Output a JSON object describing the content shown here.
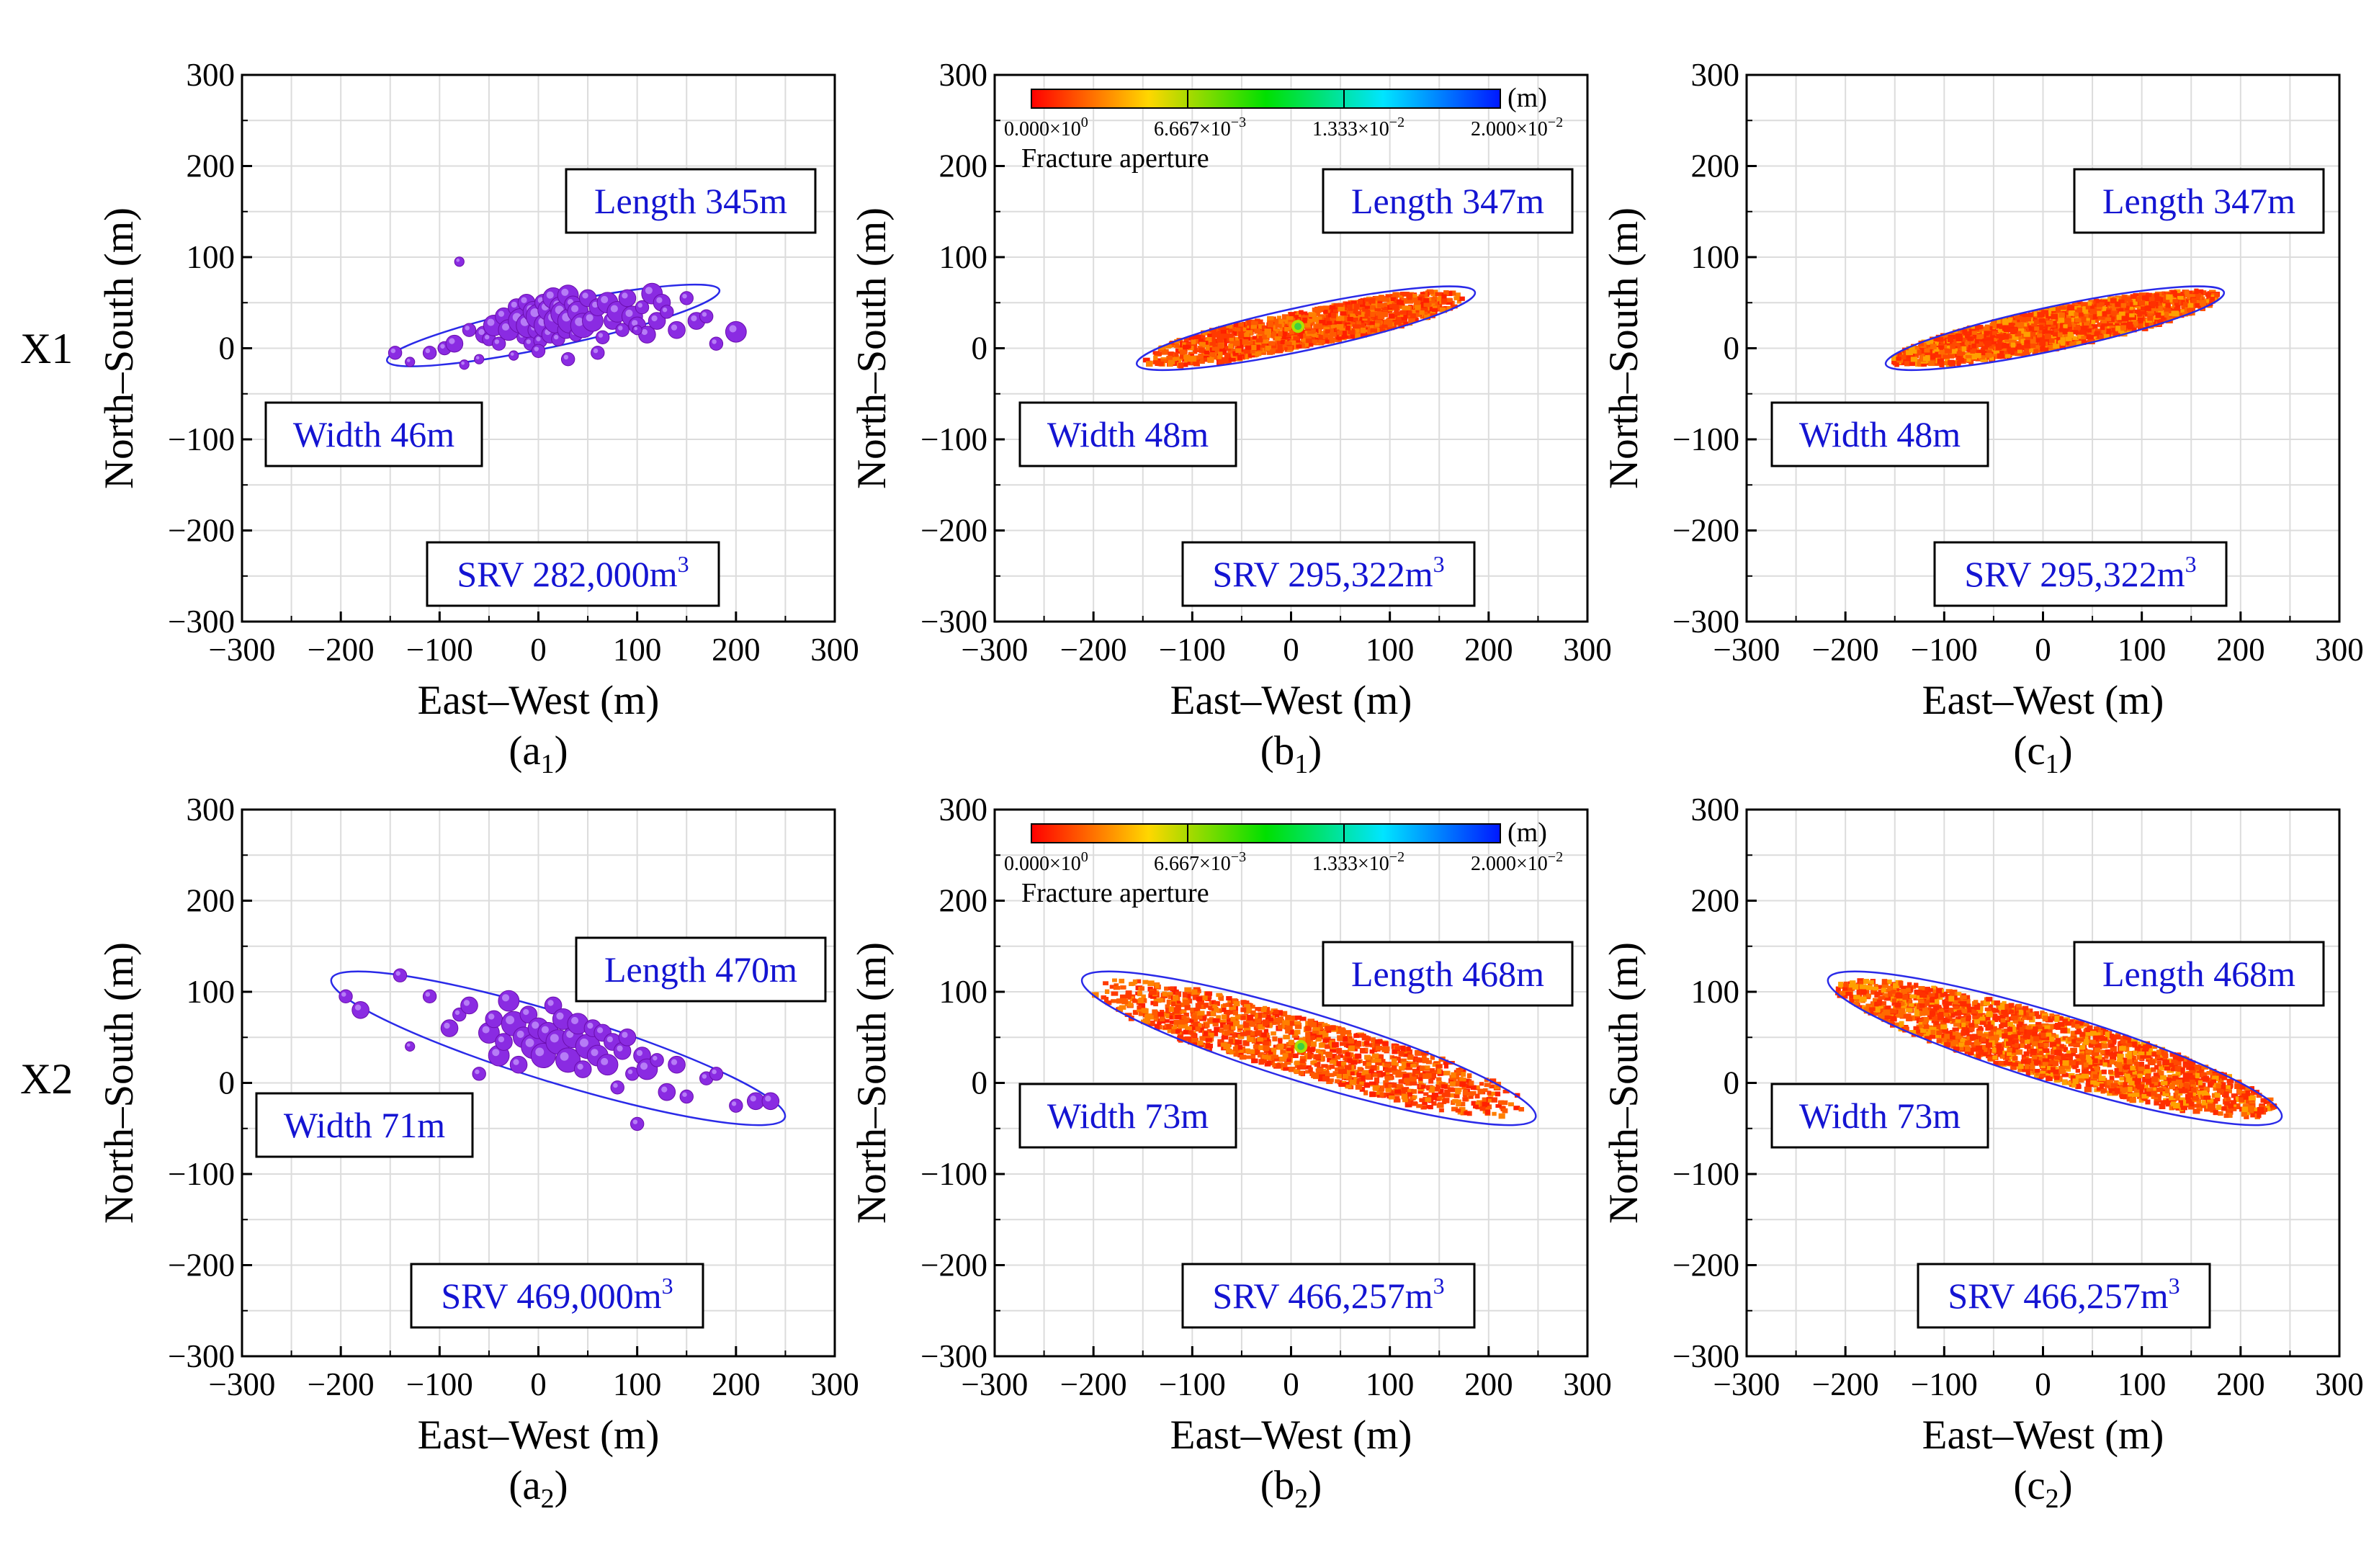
{
  "figure": {
    "rows": [
      {
        "label": "X1"
      },
      {
        "label": "X2"
      }
    ],
    "axis_labels": {
      "x": "East–West (m)",
      "y": "North–South (m)"
    },
    "ticks": [
      "−300",
      "−200",
      "−100",
      "0",
      "100",
      "200",
      "300"
    ],
    "colorbar": {
      "unit": "(m)",
      "title": "Fracture aperture",
      "ticks": [
        {
          "m": "0.000×10",
          "e": "0"
        },
        {
          "m": "6.667×10",
          "e": "−3"
        },
        {
          "m": "1.333×10",
          "e": "−2"
        },
        {
          "m": "2.000×10",
          "e": "−2"
        }
      ],
      "colors": [
        "#ff0000",
        "#ffd700",
        "#00e000",
        "#00e5ff",
        "#0018ff"
      ]
    },
    "colors": {
      "event": "#8a2be2",
      "ellipse": "#2a2ae8",
      "fracture": "#ff3a00",
      "annotation_text": "#1414d2"
    }
  },
  "chart_data": [
    {
      "id": "a1",
      "type": "scatter",
      "row": "X1",
      "panel_label": "a",
      "panel_sub": "1",
      "xlabel": "East–West (m)",
      "ylabel": "North–South (m)",
      "xlim": [
        -300,
        300
      ],
      "ylim": [
        -300,
        300
      ],
      "grid": true,
      "annotations": {
        "length": "Length 345m",
        "width": "Width 46m",
        "srv_num": "SRV 282,000m",
        "srv_sup": "3"
      },
      "ellipse": {
        "cx": 15,
        "cy": 25,
        "a": 172,
        "b": 23,
        "angle_deg": 12
      },
      "series": [
        {
          "kind": "microseismic-events",
          "x": [
            -145,
            -130,
            -110,
            -95,
            -85,
            -75,
            -70,
            -60,
            -55,
            -50,
            -45,
            -40,
            -35,
            -30,
            -25,
            -22,
            -18,
            -15,
            -12,
            -10,
            -8,
            -5,
            -2,
            0,
            2,
            5,
            8,
            10,
            12,
            15,
            18,
            20,
            22,
            25,
            28,
            30,
            32,
            35,
            38,
            40,
            45,
            50,
            55,
            60,
            65,
            70,
            75,
            80,
            85,
            90,
            95,
            100,
            105,
            110,
            115,
            120,
            125,
            130,
            140,
            150,
            160,
            170,
            180,
            200,
            -80,
            0,
            30,
            60,
            100
          ],
          "y": [
            -5,
            -15,
            -5,
            0,
            5,
            -18,
            20,
            -12,
            15,
            10,
            25,
            5,
            35,
            20,
            -8,
            45,
            30,
            12,
            50,
            25,
            5,
            40,
            20,
            35,
            8,
            50,
            25,
            42,
            15,
            55,
            30,
            10,
            45,
            38,
            20,
            58,
            30,
            48,
            15,
            40,
            25,
            55,
            30,
            45,
            12,
            50,
            30,
            40,
            20,
            55,
            35,
            25,
            45,
            15,
            60,
            30,
            50,
            40,
            20,
            55,
            30,
            35,
            5,
            18,
            95,
            -3,
            -12,
            -5,
            20
          ],
          "size": [
            2,
            1,
            2,
            2,
            3,
            1,
            2,
            1,
            3,
            2,
            4,
            2,
            3,
            4,
            1,
            3,
            5,
            2,
            3,
            5,
            2,
            4,
            3,
            5,
            2,
            3,
            5,
            4,
            3,
            4,
            5,
            2,
            4,
            5,
            3,
            4,
            5,
            3,
            2,
            4,
            5,
            3,
            4,
            3,
            2,
            4,
            3,
            4,
            2,
            3,
            4,
            3,
            2,
            3,
            4,
            3,
            3,
            2,
            3,
            2,
            3,
            2,
            2,
            4,
            1,
            2,
            2,
            2,
            1
          ]
        }
      ]
    },
    {
      "id": "b1",
      "type": "scatter",
      "row": "X1",
      "panel_label": "b",
      "panel_sub": "1",
      "xlabel": "East–West (m)",
      "ylabel": "North–South (m)",
      "xlim": [
        -300,
        300
      ],
      "ylim": [
        -300,
        300
      ],
      "grid": true,
      "annotations": {
        "length": "Length 347m",
        "width": "Width 48m",
        "srv_num": "SRV 295,322m",
        "srv_sup": "3"
      },
      "ellipse": {
        "cx": 15,
        "cy": 22,
        "a": 175,
        "b": 24,
        "angle_deg": 12
      },
      "fill": "sparse",
      "colorbar": true
    },
    {
      "id": "c1",
      "type": "scatter",
      "row": "X1",
      "panel_label": "c",
      "panel_sub": "1",
      "xlabel": "East–West (m)",
      "ylabel": "North–South (m)",
      "xlim": [
        -300,
        300
      ],
      "ylim": [
        -300,
        300
      ],
      "grid": true,
      "annotations": {
        "length": "Length 347m",
        "width": "Width 48m",
        "srv_num": "SRV 295,322m",
        "srv_sup": "3"
      },
      "ellipse": {
        "cx": 12,
        "cy": 22,
        "a": 175,
        "b": 24,
        "angle_deg": 12
      },
      "fill": "dense",
      "colorbar": false
    },
    {
      "id": "a2",
      "type": "scatter",
      "row": "X2",
      "panel_label": "a",
      "panel_sub": "2",
      "xlabel": "East–West (m)",
      "ylabel": "North–South (m)",
      "xlim": [
        -300,
        300
      ],
      "ylim": [
        -300,
        300
      ],
      "grid": true,
      "annotations": {
        "length": "Length 470m",
        "width": "Width 71m",
        "srv_num": "SRV 469,000m",
        "srv_sup": "3"
      },
      "ellipse": {
        "cx": 20,
        "cy": 38,
        "a": 240,
        "b": 38,
        "angle_deg": -17
      },
      "series": [
        {
          "kind": "microseismic-events",
          "x": [
            -195,
            -180,
            -140,
            -130,
            -110,
            -90,
            -80,
            -70,
            -60,
            -50,
            -45,
            -40,
            -35,
            -30,
            -25,
            -20,
            -15,
            -10,
            -5,
            0,
            5,
            10,
            15,
            20,
            25,
            30,
            35,
            40,
            45,
            50,
            55,
            60,
            65,
            70,
            75,
            80,
            85,
            90,
            95,
            100,
            105,
            110,
            120,
            130,
            140,
            150,
            170,
            180,
            200,
            220,
            235
          ],
          "y": [
            95,
            80,
            118,
            40,
            95,
            60,
            75,
            85,
            10,
            55,
            70,
            30,
            45,
            90,
            65,
            20,
            50,
            75,
            40,
            60,
            30,
            55,
            85,
            45,
            70,
            25,
            50,
            65,
            15,
            40,
            60,
            30,
            55,
            20,
            45,
            -5,
            35,
            50,
            10,
            -45,
            30,
            15,
            25,
            -10,
            20,
            -15,
            5,
            10,
            -25,
            -20,
            -20
          ],
          "size": [
            2,
            3,
            2,
            1,
            2,
            3,
            2,
            3,
            2,
            4,
            3,
            4,
            3,
            4,
            5,
            3,
            4,
            3,
            5,
            4,
            5,
            4,
            3,
            5,
            4,
            5,
            4,
            4,
            3,
            5,
            3,
            4,
            3,
            4,
            3,
            2,
            3,
            3,
            2,
            2,
            3,
            4,
            2,
            3,
            3,
            2,
            2,
            2,
            2,
            3,
            3
          ]
        }
      ]
    },
    {
      "id": "b2",
      "type": "scatter",
      "row": "X2",
      "panel_label": "b",
      "panel_sub": "2",
      "xlabel": "East–West (m)",
      "ylabel": "North–South (m)",
      "xlim": [
        -300,
        300
      ],
      "ylim": [
        -300,
        300
      ],
      "grid": true,
      "annotations": {
        "length": "Length 468m",
        "width": "Width 73m",
        "srv_num": "SRV 466,257m",
        "srv_sup": "3"
      },
      "ellipse": {
        "cx": 18,
        "cy": 38,
        "a": 240,
        "b": 38,
        "angle_deg": -17
      },
      "fill": "sparse",
      "colorbar": true
    },
    {
      "id": "c2",
      "type": "scatter",
      "row": "X2",
      "panel_label": "c",
      "panel_sub": "2",
      "xlabel": "East–West (m)",
      "ylabel": "North–South (m)",
      "xlim": [
        -300,
        300
      ],
      "ylim": [
        -300,
        300
      ],
      "grid": true,
      "annotations": {
        "length": "Length 468m",
        "width": "Width 73m",
        "srv_num": "SRV 466,257m",
        "srv_sup": "3"
      },
      "ellipse": {
        "cx": 12,
        "cy": 38,
        "a": 240,
        "b": 38,
        "angle_deg": -17
      },
      "fill": "dense",
      "colorbar": false
    }
  ]
}
